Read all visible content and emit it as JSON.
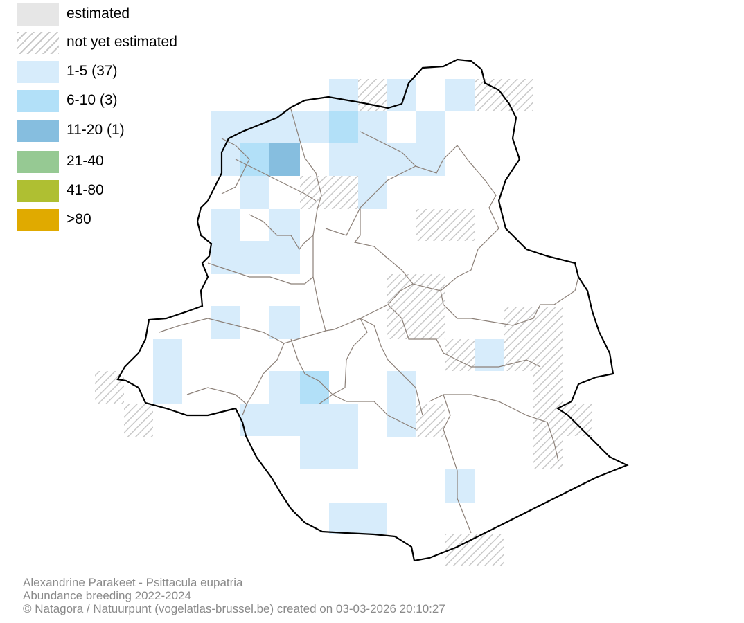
{
  "legend": {
    "items": [
      {
        "label": "estimated",
        "style": "fill",
        "color": "#e6e6e6"
      },
      {
        "label": "not yet estimated",
        "style": "hatch",
        "color": "#c8c8c8"
      },
      {
        "label": "1-5 (37)",
        "style": "fill",
        "color": "#d7ecfb"
      },
      {
        "label": "6-10 (3)",
        "style": "fill",
        "color": "#b2e0f8"
      },
      {
        "label": "11-20 (1)",
        "style": "fill",
        "color": "#86bedf"
      },
      {
        "label": "21-40",
        "style": "fill",
        "color": "#96c993"
      },
      {
        "label": "41-80",
        "style": "fill",
        "color": "#afbf32"
      },
      {
        "label": ">80",
        "style": "fill",
        "color": "#e0aa00"
      }
    ]
  },
  "caption": {
    "species": "Alexandrine Parakeet - Psittacula eupatria",
    "dataset": "Abundance breeding 2022-2024",
    "credit": "© Natagora / Natuurpunt (vogelatlas-brussel.be) created on 03-03-2026 20:10:27"
  },
  "colors": {
    "boundary": "#000000",
    "municipality_lines": "#8c8078",
    "background": "#ffffff"
  }
}
